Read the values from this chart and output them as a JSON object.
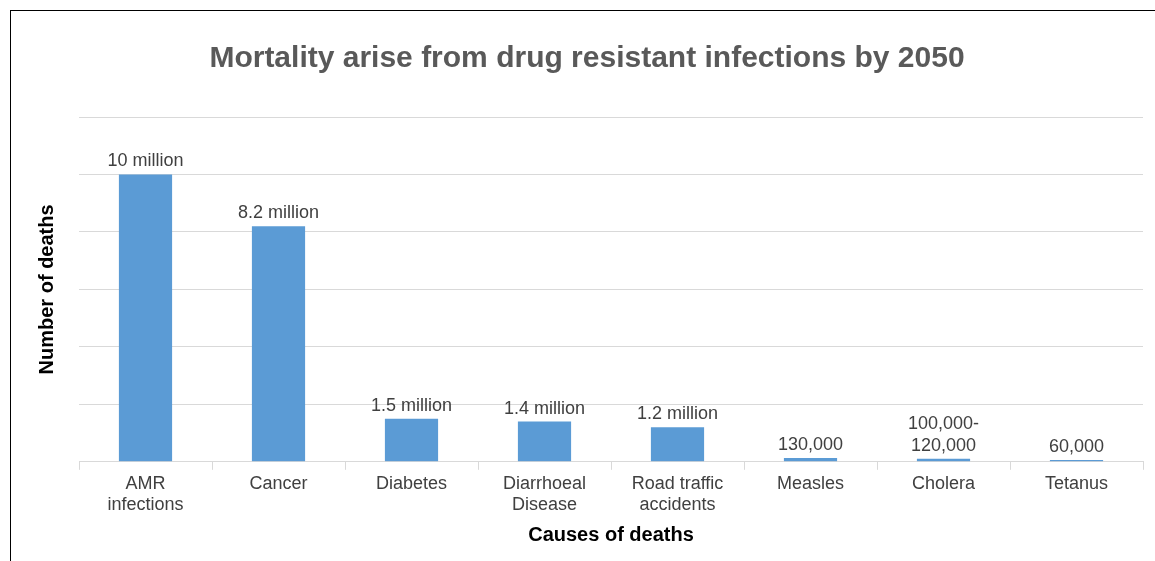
{
  "chart_data": {
    "type": "bar",
    "title": "Mortality arise from drug resistant infections by 2050",
    "xlabel": "Causes of deaths",
    "ylabel": "Number of deaths",
    "categories": [
      "AMR infections",
      "Cancer",
      "Diabetes",
      "Diarrhoeal Disease",
      "Road traffic accidents",
      "Measles",
      "Cholera",
      "Tetanus"
    ],
    "values": [
      10000000,
      8200000,
      1500000,
      1400000,
      1200000,
      130000,
      110000,
      60000
    ],
    "value_labels": [
      "10 million",
      "8.2 million",
      "1.5 million",
      "1.4 million",
      "1.2 million",
      "130,000",
      "100,000-120,000",
      "60,000"
    ],
    "color": "#5b9bd5",
    "ylim": [
      0,
      12000000
    ],
    "yticks": [
      {
        "value": 0,
        "label": null
      },
      {
        "value": 2000000,
        "label": null
      },
      {
        "value": 4000000,
        "label": null
      },
      {
        "value": 6000000,
        "label": null
      },
      {
        "value": 8000000,
        "label": null
      },
      {
        "value": 10000000,
        "label": null
      },
      {
        "value": 12000000,
        "label": null
      }
    ],
    "grid": "y",
    "tick_labels": "x"
  }
}
